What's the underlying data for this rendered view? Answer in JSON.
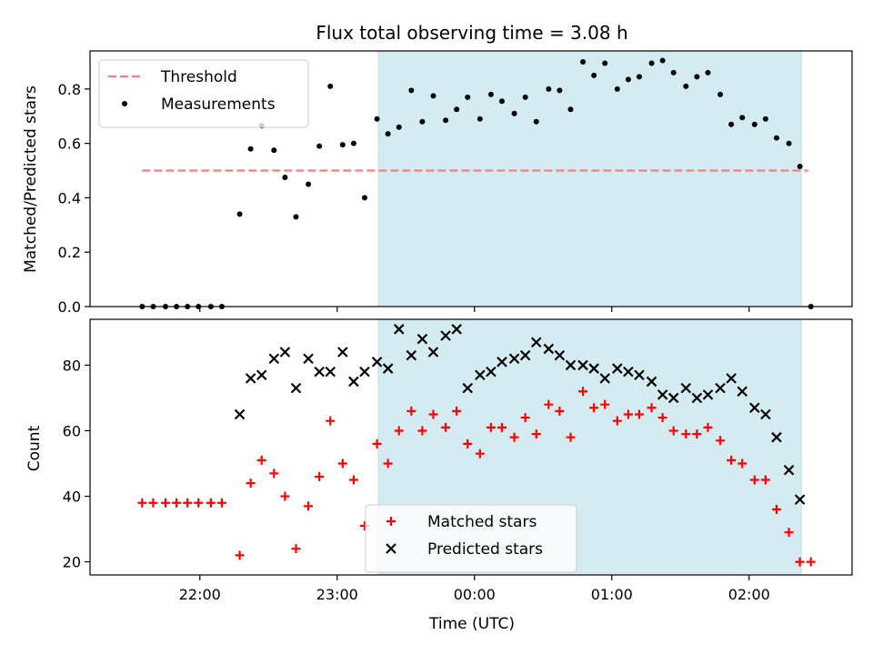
{
  "chart_data": {
    "title": "Flux total observing time = 3.08 h",
    "xlabel": "Time (UTC)",
    "x_ticks": [
      "22:00",
      "23:00",
      "00:00",
      "01:00",
      "02:00"
    ],
    "shaded_span": {
      "start_h": 23.3,
      "end_h": 26.38,
      "color": "#d4ebf1"
    },
    "panels": [
      {
        "type": "scatter",
        "ylabel": "Matched/Predicted stars",
        "ylim": [
          0,
          0.94
        ],
        "y_ticks": [
          "0.0",
          "0.2",
          "0.4",
          "0.6",
          "0.8"
        ],
        "y_tick_values": [
          0,
          0.2,
          0.4,
          0.6,
          0.8
        ],
        "legend": {
          "position": "upper-left"
        },
        "threshold": {
          "name": "Threshold",
          "value": 0.5,
          "x_range": [
            21.58,
            26.43
          ],
          "color": "#f08080"
        },
        "series": [
          {
            "name": "Measurements",
            "color": "#000000",
            "marker": "dot",
            "x": [
              21.58,
              21.66,
              21.75,
              21.83,
              21.91,
              21.99,
              22.08,
              22.16,
              22.29,
              22.37,
              22.45,
              22.54,
              22.62,
              22.7,
              22.79,
              22.87,
              22.95,
              23.04,
              23.12,
              23.2,
              23.29,
              23.37,
              23.45,
              23.54,
              23.62,
              23.7,
              23.79,
              23.87,
              23.95,
              24.04,
              24.12,
              24.2,
              24.29,
              24.37,
              24.45,
              24.54,
              24.62,
              24.7,
              24.79,
              24.87,
              24.95,
              25.04,
              25.12,
              25.2,
              25.29,
              25.37,
              25.45,
              25.54,
              25.62,
              25.7,
              25.79,
              25.87,
              25.95,
              26.04,
              26.12,
              26.2,
              26.29,
              26.37,
              26.45
            ],
            "y": [
              0.0,
              0.0,
              0.0,
              0.0,
              0.0,
              0.0,
              0.0,
              0.0,
              0.34,
              0.58,
              0.665,
              0.575,
              0.475,
              0.33,
              0.45,
              0.59,
              0.81,
              0.595,
              0.6,
              0.4,
              0.69,
              0.635,
              0.66,
              0.795,
              0.68,
              0.775,
              0.685,
              0.725,
              0.77,
              0.69,
              0.78,
              0.755,
              0.71,
              0.77,
              0.68,
              0.8,
              0.795,
              0.725,
              0.9,
              0.85,
              0.895,
              0.8,
              0.835,
              0.845,
              0.895,
              0.905,
              0.86,
              0.81,
              0.845,
              0.86,
              0.78,
              0.67,
              0.695,
              0.67,
              0.69,
              0.62,
              0.6,
              0.515,
              0.0
            ]
          }
        ]
      },
      {
        "type": "scatter",
        "ylabel": "Count",
        "ylim": [
          16,
          94
        ],
        "y_ticks": [
          "20",
          "40",
          "60",
          "80"
        ],
        "y_tick_values": [
          20,
          40,
          60,
          80
        ],
        "legend": {
          "position": "lower-center"
        },
        "series": [
          {
            "name": "Matched stars",
            "color": "#ff0000",
            "marker": "plus",
            "x": [
              21.58,
              21.66,
              21.75,
              21.83,
              21.91,
              21.99,
              22.08,
              22.16,
              22.29,
              22.37,
              22.45,
              22.54,
              22.62,
              22.7,
              22.79,
              22.87,
              22.95,
              23.04,
              23.12,
              23.2,
              23.29,
              23.37,
              23.45,
              23.54,
              23.62,
              23.7,
              23.79,
              23.87,
              23.95,
              24.04,
              24.12,
              24.2,
              24.29,
              24.37,
              24.45,
              24.54,
              24.62,
              24.7,
              24.79,
              24.87,
              24.95,
              25.04,
              25.12,
              25.2,
              25.29,
              25.37,
              25.45,
              25.54,
              25.62,
              25.7,
              25.79,
              25.87,
              25.95,
              26.04,
              26.12,
              26.2,
              26.29,
              26.37,
              26.45
            ],
            "y": [
              38,
              38,
              38,
              38,
              38,
              38,
              38,
              38,
              22,
              44,
              51,
              47,
              40,
              24,
              37,
              46,
              63,
              50,
              45,
              31,
              56,
              50,
              60,
              66,
              60,
              65,
              61,
              66,
              56,
              53,
              61,
              61,
              58,
              64,
              59,
              68,
              66,
              58,
              72,
              67,
              68,
              63,
              65,
              65,
              67,
              64,
              60,
              59,
              59,
              61,
              57,
              51,
              50,
              45,
              45,
              36,
              29,
              20,
              20
            ]
          },
          {
            "name": "Predicted stars",
            "color": "#000000",
            "marker": "x",
            "x": [
              22.29,
              22.37,
              22.45,
              22.54,
              22.62,
              22.7,
              22.79,
              22.87,
              22.95,
              23.04,
              23.12,
              23.2,
              23.29,
              23.37,
              23.45,
              23.54,
              23.62,
              23.7,
              23.79,
              23.87,
              23.95,
              24.04,
              24.12,
              24.2,
              24.29,
              24.37,
              24.45,
              24.54,
              24.62,
              24.7,
              24.79,
              24.87,
              24.95,
              25.04,
              25.12,
              25.2,
              25.29,
              25.37,
              25.45,
              25.54,
              25.62,
              25.7,
              25.79,
              25.87,
              25.95,
              26.04,
              26.12,
              26.2,
              26.29,
              26.37
            ],
            "y": [
              65,
              76,
              77,
              82,
              84,
              73,
              82,
              78,
              78,
              84,
              75,
              78,
              81,
              79,
              91,
              83,
              88,
              84,
              89,
              91,
              73,
              77,
              78,
              81,
              82,
              83,
              87,
              85,
              83,
              80,
              80,
              79,
              76,
              79,
              78,
              77,
              75,
              71,
              70,
              73,
              70,
              71,
              73,
              76,
              72,
              67,
              65,
              58,
              48,
              39
            ]
          }
        ]
      }
    ]
  }
}
